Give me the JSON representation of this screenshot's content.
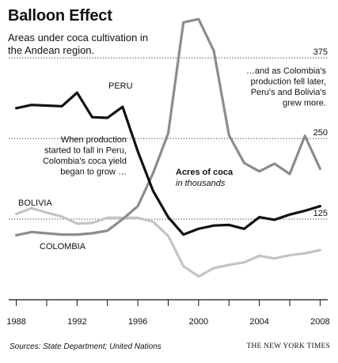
{
  "header": {
    "title": "Balloon Effect",
    "subtitle": "Areas under coca cultivation in the Andean region."
  },
  "footer": {
    "source": "Sources: State Department; United Nations",
    "credit": "THE NEW YORK TIMES"
  },
  "annotations": {
    "unit_label_1": "Acres of coca",
    "unit_label_2": "in thousands",
    "peru_note": [
      "When production",
      "started to fall in Peru,",
      "Colombia's coca yield",
      "began to grow …"
    ],
    "colombia_note": [
      "…and as Colombia's",
      "production fell later,",
      "Peru's and Bolivia's",
      "grew more."
    ]
  },
  "colors": {
    "peru": "#111111",
    "colombia": "#8c8c8c",
    "bolivia": "#c4c4c4"
  },
  "chart_data": {
    "type": "line",
    "title": "Balloon Effect",
    "subtitle": "Areas under coca cultivation in the Andean region.",
    "ylabel": "Acres of coca in thousands",
    "xlim": [
      1987.5,
      2008.5
    ],
    "ylim": [
      0,
      450
    ],
    "x_ticks": [
      1988,
      1990,
      1992,
      1994,
      1996,
      1998,
      2000,
      2002,
      2004,
      2006,
      2008
    ],
    "x_tick_labels": [
      "1988",
      "1992",
      "1996",
      "2000",
      "2004",
      "2008"
    ],
    "y_ticks": [
      125,
      250,
      375
    ],
    "gridlines": "dotted horizontal at 125, 250, 375",
    "series": [
      {
        "name": "PERU",
        "x": [
          1988,
          1989,
          1990,
          1991,
          1992,
          1993,
          1994,
          1995,
          1996,
          1997,
          1998,
          1999,
          2000,
          2001,
          2002,
          2003,
          2004,
          2005,
          2006,
          2007,
          2008
        ],
        "values": [
          297,
          302,
          301,
          300,
          321,
          283,
          282,
          299,
          230,
          169,
          128,
          101,
          110,
          115,
          116,
          110,
          128,
          124,
          132,
          138,
          145
        ]
      },
      {
        "name": "COLOMBIA",
        "x": [
          1988,
          1989,
          1990,
          1991,
          1992,
          1993,
          1994,
          1995,
          1996,
          1997,
          1998,
          1999,
          2000,
          2001,
          2002,
          2003,
          2004,
          2005,
          2006,
          2007,
          2008
        ],
        "values": [
          100,
          105,
          103,
          101,
          101,
          103,
          107,
          125,
          145,
          196,
          258,
          430,
          435,
          386,
          255,
          212,
          199,
          211,
          195,
          254,
          203
        ]
      },
      {
        "name": "BOLIVIA",
        "x": [
          1988,
          1989,
          1990,
          1991,
          1992,
          1993,
          1994,
          1995,
          1996,
          1997,
          1998,
          1999,
          2000,
          2001,
          2002,
          2003,
          2004,
          2005,
          2006,
          2007,
          2008
        ],
        "values": [
          133,
          142,
          135,
          129,
          118,
          119,
          127,
          127,
          127,
          121,
          99,
          52,
          36,
          49,
          54,
          58,
          68,
          64,
          69,
          72,
          77
        ]
      }
    ]
  }
}
